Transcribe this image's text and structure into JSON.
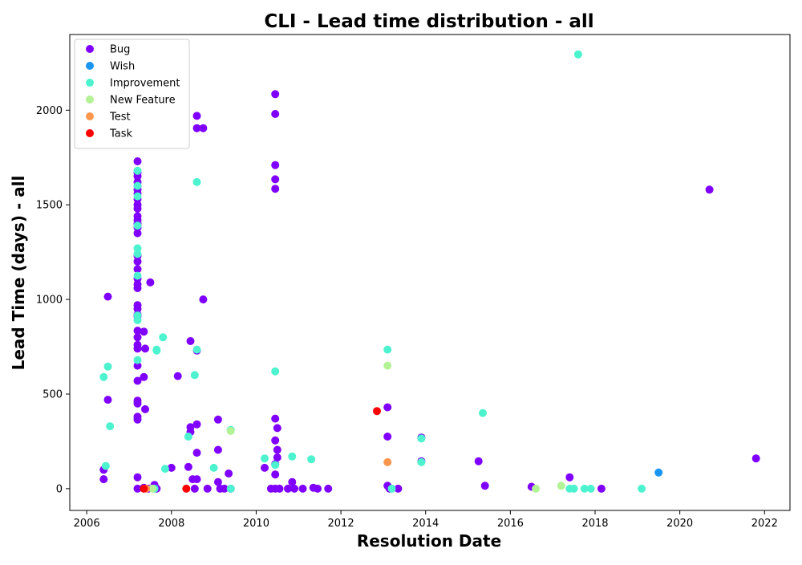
{
  "chart_data": {
    "type": "scatter",
    "title": "CLI - Lead time distribution - all",
    "xlabel": "Resolution Date",
    "ylabel": "Lead Time (days) - all",
    "xlim": [
      2005.6,
      2022.6
    ],
    "ylim": [
      -115,
      2400
    ],
    "x_ticks": [
      2006,
      2008,
      2010,
      2012,
      2014,
      2016,
      2018,
      2020,
      2022
    ],
    "y_ticks": [
      0,
      500,
      1000,
      1500,
      2000
    ],
    "grid": false,
    "legend_position": "top-left",
    "series": [
      {
        "name": "Bug",
        "color": "#8000ff",
        "points": [
          [
            2006.4,
            100
          ],
          [
            2006.4,
            50
          ],
          [
            2006.5,
            1015
          ],
          [
            2006.5,
            470
          ],
          [
            2007.2,
            1730
          ],
          [
            2007.2,
            1670
          ],
          [
            2007.2,
            1650
          ],
          [
            2007.2,
            1620
          ],
          [
            2007.2,
            1600
          ],
          [
            2007.2,
            1580
          ],
          [
            2007.2,
            1560
          ],
          [
            2007.2,
            1530
          ],
          [
            2007.2,
            1500
          ],
          [
            2007.2,
            1480
          ],
          [
            2007.2,
            1440
          ],
          [
            2007.2,
            1420
          ],
          [
            2007.2,
            1400
          ],
          [
            2007.2,
            1380
          ],
          [
            2007.2,
            1350
          ],
          [
            2007.2,
            1230
          ],
          [
            2007.2,
            1200
          ],
          [
            2007.2,
            1160
          ],
          [
            2007.2,
            1110
          ],
          [
            2007.2,
            1080
          ],
          [
            2007.2,
            1060
          ],
          [
            2007.2,
            970
          ],
          [
            2007.2,
            950
          ],
          [
            2007.2,
            920
          ],
          [
            2007.2,
            910
          ],
          [
            2007.2,
            835
          ],
          [
            2007.2,
            800
          ],
          [
            2007.2,
            760
          ],
          [
            2007.2,
            740
          ],
          [
            2007.2,
            650
          ],
          [
            2007.2,
            570
          ],
          [
            2007.2,
            465
          ],
          [
            2007.2,
            450
          ],
          [
            2007.2,
            380
          ],
          [
            2007.2,
            365
          ],
          [
            2007.2,
            60
          ],
          [
            2007.2,
            0
          ],
          [
            2007.35,
            830
          ],
          [
            2007.38,
            740
          ],
          [
            2007.35,
            590
          ],
          [
            2007.38,
            420
          ],
          [
            2007.5,
            1090
          ],
          [
            2007.35,
            5
          ],
          [
            2007.45,
            0
          ],
          [
            2007.6,
            20
          ],
          [
            2007.65,
            0
          ],
          [
            2008.0,
            110
          ],
          [
            2008.15,
            595
          ],
          [
            2008.4,
            115
          ],
          [
            2008.45,
            780
          ],
          [
            2008.45,
            325
          ],
          [
            2008.45,
            300
          ],
          [
            2008.5,
            50
          ],
          [
            2008.55,
            0
          ],
          [
            2008.6,
            1970
          ],
          [
            2008.6,
            1905
          ],
          [
            2008.6,
            730
          ],
          [
            2008.6,
            340
          ],
          [
            2008.6,
            190
          ],
          [
            2008.6,
            50
          ],
          [
            2008.75,
            1905
          ],
          [
            2008.75,
            1000
          ],
          [
            2008.85,
            0
          ],
          [
            2009.1,
            365
          ],
          [
            2009.1,
            205
          ],
          [
            2009.1,
            35
          ],
          [
            2009.15,
            0
          ],
          [
            2009.25,
            0
          ],
          [
            2009.35,
            80
          ],
          [
            2009.4,
            0
          ],
          [
            2010.2,
            110
          ],
          [
            2010.35,
            0
          ],
          [
            2010.45,
            2085
          ],
          [
            2010.45,
            1980
          ],
          [
            2010.45,
            1710
          ],
          [
            2010.45,
            1635
          ],
          [
            2010.45,
            1585
          ],
          [
            2010.45,
            370
          ],
          [
            2010.5,
            320
          ],
          [
            2010.45,
            255
          ],
          [
            2010.5,
            205
          ],
          [
            2010.5,
            165
          ],
          [
            2010.45,
            130
          ],
          [
            2010.45,
            75
          ],
          [
            2010.45,
            0
          ],
          [
            2010.55,
            0
          ],
          [
            2010.75,
            0
          ],
          [
            2010.85,
            35
          ],
          [
            2010.9,
            0
          ],
          [
            2011.1,
            0
          ],
          [
            2011.35,
            5
          ],
          [
            2011.45,
            0
          ],
          [
            2011.7,
            0
          ],
          [
            2013.1,
            430
          ],
          [
            2013.1,
            275
          ],
          [
            2013.1,
            15
          ],
          [
            2013.15,
            0
          ],
          [
            2013.35,
            0
          ],
          [
            2013.9,
            270
          ],
          [
            2013.9,
            145
          ],
          [
            2015.25,
            145
          ],
          [
            2015.4,
            15
          ],
          [
            2016.5,
            10
          ],
          [
            2017.4,
            60
          ],
          [
            2018.15,
            0
          ],
          [
            2020.7,
            1580
          ],
          [
            2021.8,
            160
          ]
        ]
      },
      {
        "name": "Wish",
        "color": "#1996f3",
        "points": [
          [
            2019.5,
            85
          ]
        ]
      },
      {
        "name": "Improvement",
        "color": "#4df3ce",
        "points": [
          [
            2006.4,
            590
          ],
          [
            2006.5,
            645
          ],
          [
            2006.55,
            330
          ],
          [
            2006.45,
            120
          ],
          [
            2007.2,
            1680
          ],
          [
            2007.2,
            1600
          ],
          [
            2007.2,
            1545
          ],
          [
            2007.2,
            1390
          ],
          [
            2007.2,
            1270
          ],
          [
            2007.2,
            1240
          ],
          [
            2007.2,
            1125
          ],
          [
            2007.2,
            915
          ],
          [
            2007.2,
            890
          ],
          [
            2007.2,
            680
          ],
          [
            2007.6,
            0
          ],
          [
            2007.65,
            735
          ],
          [
            2007.65,
            730
          ],
          [
            2007.8,
            800
          ],
          [
            2007.85,
            105
          ],
          [
            2008.4,
            275
          ],
          [
            2008.55,
            600
          ],
          [
            2008.6,
            735
          ],
          [
            2008.6,
            1620
          ],
          [
            2009.0,
            110
          ],
          [
            2009.4,
            310
          ],
          [
            2009.4,
            0
          ],
          [
            2010.2,
            160
          ],
          [
            2010.45,
            125
          ],
          [
            2010.45,
            620
          ],
          [
            2010.85,
            170
          ],
          [
            2011.3,
            155
          ],
          [
            2013.1,
            735
          ],
          [
            2013.2,
            0
          ],
          [
            2013.9,
            140
          ],
          [
            2013.9,
            265
          ],
          [
            2015.35,
            400
          ],
          [
            2017.4,
            0
          ],
          [
            2017.5,
            0
          ],
          [
            2017.6,
            2295
          ],
          [
            2017.75,
            0
          ],
          [
            2017.9,
            0
          ],
          [
            2019.1,
            0
          ]
        ]
      },
      {
        "name": "New Feature",
        "color": "#b3f396",
        "points": [
          [
            2007.55,
            0
          ],
          [
            2009.4,
            305
          ],
          [
            2013.1,
            650
          ],
          [
            2016.6,
            0
          ],
          [
            2017.2,
            15
          ]
        ]
      },
      {
        "name": "Test",
        "color": "#ff964d",
        "points": [
          [
            2007.4,
            0
          ],
          [
            2013.1,
            140
          ]
        ]
      },
      {
        "name": "Task",
        "color": "#ff0000",
        "points": [
          [
            2007.35,
            0
          ],
          [
            2008.35,
            0
          ],
          [
            2012.85,
            410
          ]
        ]
      }
    ]
  }
}
